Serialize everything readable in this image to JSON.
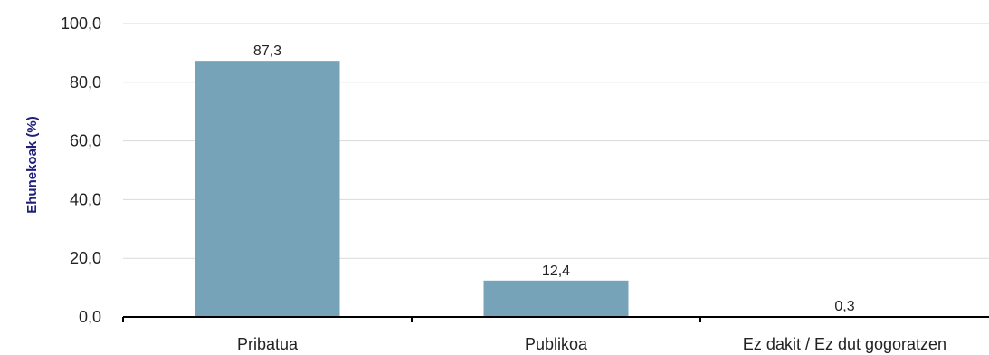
{
  "chart_data": {
    "type": "bar",
    "title": "",
    "xlabel": "",
    "ylabel": "Ehunekoak (%)",
    "categories": [
      "Pribatua",
      "Publikoa",
      "Ez dakit / Ez dut gogoratzen"
    ],
    "values": [
      87.3,
      12.4,
      0.3
    ],
    "value_labels": [
      "87,3",
      "12,4",
      "0,3"
    ],
    "ylim": [
      0,
      100
    ],
    "yticks": [
      0,
      20,
      40,
      60,
      80,
      100
    ],
    "ytick_labels": [
      "0,0",
      "20,0",
      "40,0",
      "60,0",
      "80,0",
      "100,0"
    ],
    "grid": true,
    "legend": "none",
    "colors": {
      "bar": "#77a3b8",
      "grid": "#d9d9d9",
      "axis": "#000000",
      "ylabel": "#1f1f7a"
    }
  }
}
